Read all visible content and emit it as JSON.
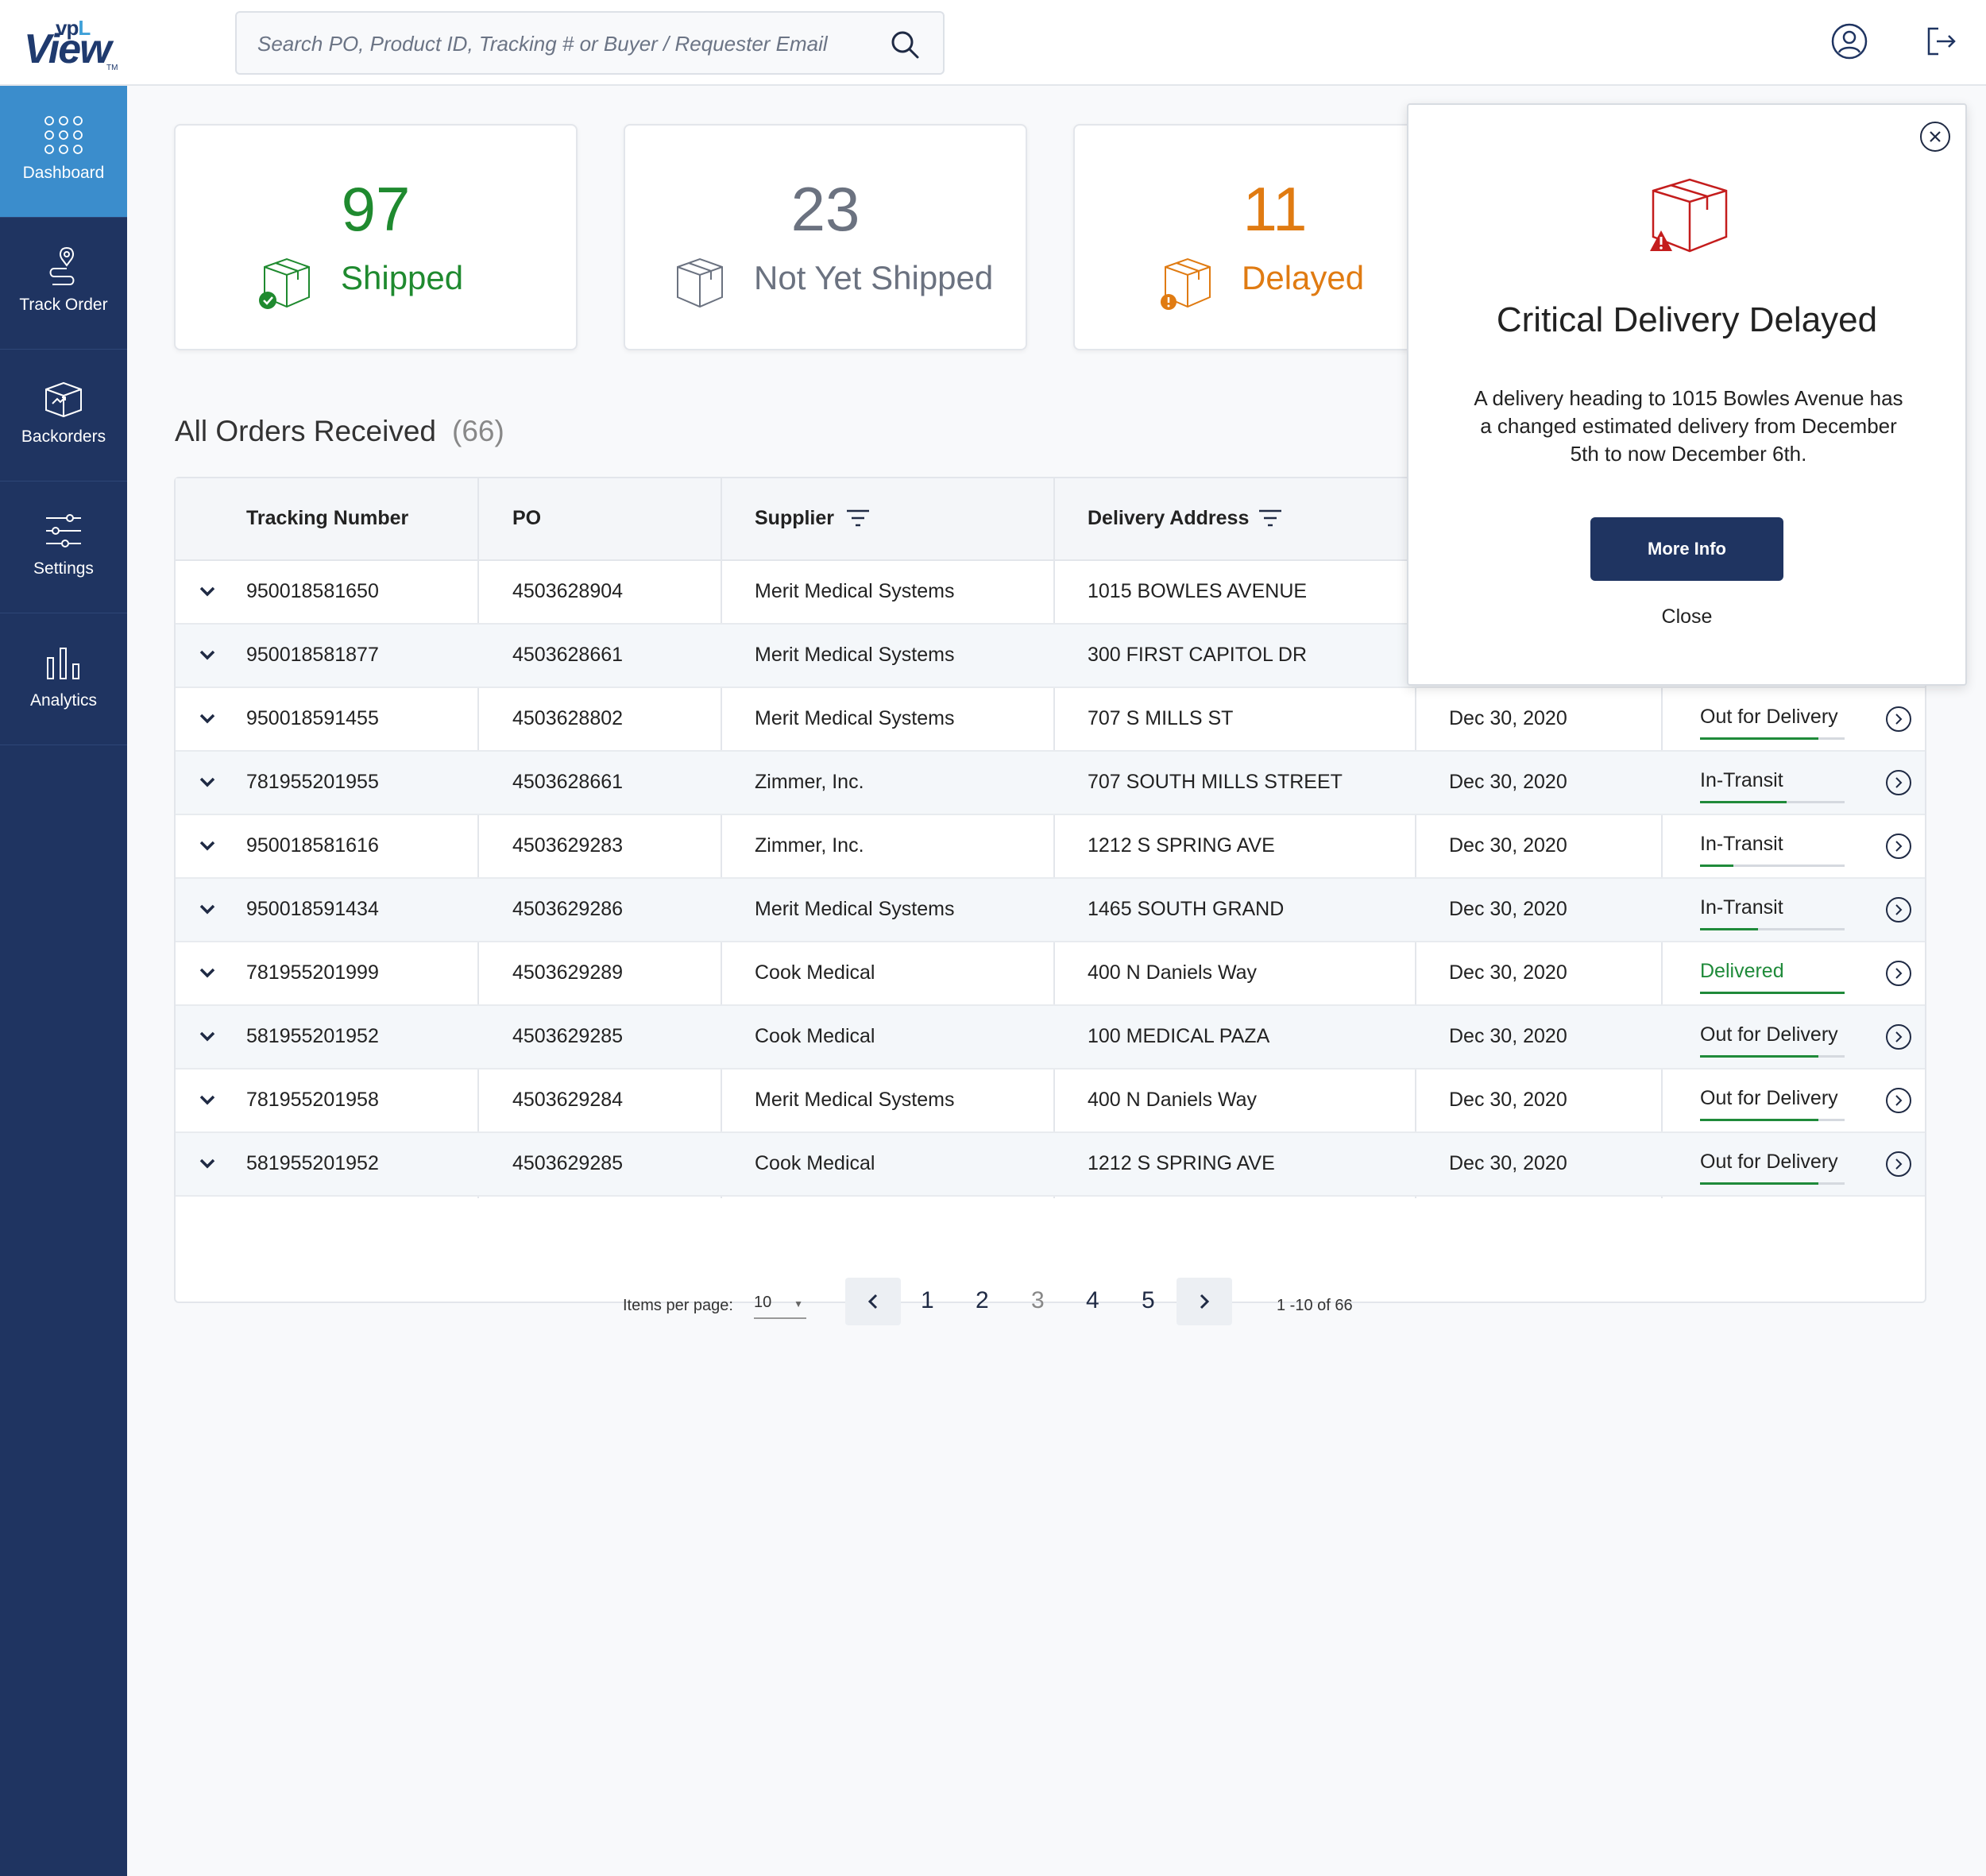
{
  "search": {
    "placeholder": "Search PO, Product ID, Tracking # or Buyer / Requester Email"
  },
  "logo": {
    "vp": "vp",
    "l": "L",
    "view": "View",
    "tm": "TM"
  },
  "sidebar": {
    "items": [
      {
        "label": "Dashboard",
        "icon": "dashboard-grid-icon",
        "active": true
      },
      {
        "label": "Track Order",
        "icon": "map-pin-route-icon"
      },
      {
        "label": "Backorders",
        "icon": "box-arrow-icon"
      },
      {
        "label": "Settings",
        "icon": "sliders-icon"
      },
      {
        "label": "Analytics",
        "icon": "bar-chart-icon"
      }
    ]
  },
  "stats": [
    {
      "value": "97",
      "label": "Shipped",
      "color": "#1f8a2f",
      "icon": "box-check-icon"
    },
    {
      "value": "23",
      "label": "Not Yet Shipped",
      "color": "#6b7280",
      "icon": "box-icon"
    },
    {
      "value": "11",
      "label": "Delayed",
      "color": "#e07b12",
      "icon": "box-alert-icon"
    }
  ],
  "orders": {
    "title": "All Orders Received",
    "count": "(66)",
    "headers": {
      "tracking": "Tracking Number",
      "po": "PO",
      "supplier": "Supplier",
      "address": "Delivery Address"
    },
    "rows": [
      {
        "tracking": "950018581650",
        "po": "4503628904",
        "supplier": "Merit Medical Systems",
        "address": "1015 BOWLES AVENUE",
        "date": "",
        "status": ""
      },
      {
        "tracking": "950018581877",
        "po": "4503628661",
        "supplier": "Merit Medical Systems",
        "address": "300 FIRST CAPITOL DR",
        "date": "",
        "status": ""
      },
      {
        "tracking": "950018591455",
        "po": "4503628802",
        "supplier": "Merit Medical Systems",
        "address": "707 S MILLS ST",
        "date": "Dec 30, 2020",
        "status": "Out for Delivery",
        "progress": 0.82
      },
      {
        "tracking": "781955201955",
        "po": "4503628661",
        "supplier": "Zimmer, Inc.",
        "address": "707 SOUTH MILLS STREET",
        "date": "Dec 30, 2020",
        "status": "In-Transit",
        "progress": 0.6
      },
      {
        "tracking": "950018581616",
        "po": "4503629283",
        "supplier": "Zimmer, Inc.",
        "address": "1212 S SPRING AVE",
        "date": "Dec 30, 2020",
        "status": "In-Transit",
        "progress": 0.23
      },
      {
        "tracking": "950018591434",
        "po": "4503629286",
        "supplier": "Merit Medical Systems",
        "address": "1465 SOUTH GRAND",
        "date": "Dec 30, 2020",
        "status": "In-Transit",
        "progress": 0.4
      },
      {
        "tracking": "781955201999",
        "po": "4503629289",
        "supplier": "Cook Medical",
        "address": "400 N Daniels Way",
        "date": "Dec 30, 2020",
        "status": "Delivered",
        "progress": 1.0,
        "delivered": true
      },
      {
        "tracking": "581955201952",
        "po": "4503629285",
        "supplier": "Cook Medical",
        "address": "100 MEDICAL PAZA",
        "date": "Dec 30, 2020",
        "status": "Out for Delivery",
        "progress": 0.82
      },
      {
        "tracking": "781955201958",
        "po": "4503629284",
        "supplier": "Merit Medical Systems",
        "address": "400 N Daniels Way",
        "date": "Dec 30, 2020",
        "status": "Out for Delivery",
        "progress": 0.82
      },
      {
        "tracking": "581955201952",
        "po": "4503629285",
        "supplier": "Cook Medical",
        "address": "1212 S SPRING AVE",
        "date": "Dec 30, 2020",
        "status": "Out for Delivery",
        "progress": 0.82
      }
    ]
  },
  "pagination": {
    "items_label": "Items per page:",
    "items_value": "10",
    "pages": [
      "1",
      "2",
      "3",
      "4",
      "5"
    ],
    "current_page": "3",
    "range": "1 -10 of 66"
  },
  "alert": {
    "title": "Critical Delivery Delayed",
    "body": "A delivery heading to 1015 Bowles Avenue has a changed estimated delivery from December 5th to now December 6th.",
    "more_info": "More Info",
    "close": "Close",
    "icon": "box-warning-icon",
    "icon_color": "#c41d1d"
  }
}
